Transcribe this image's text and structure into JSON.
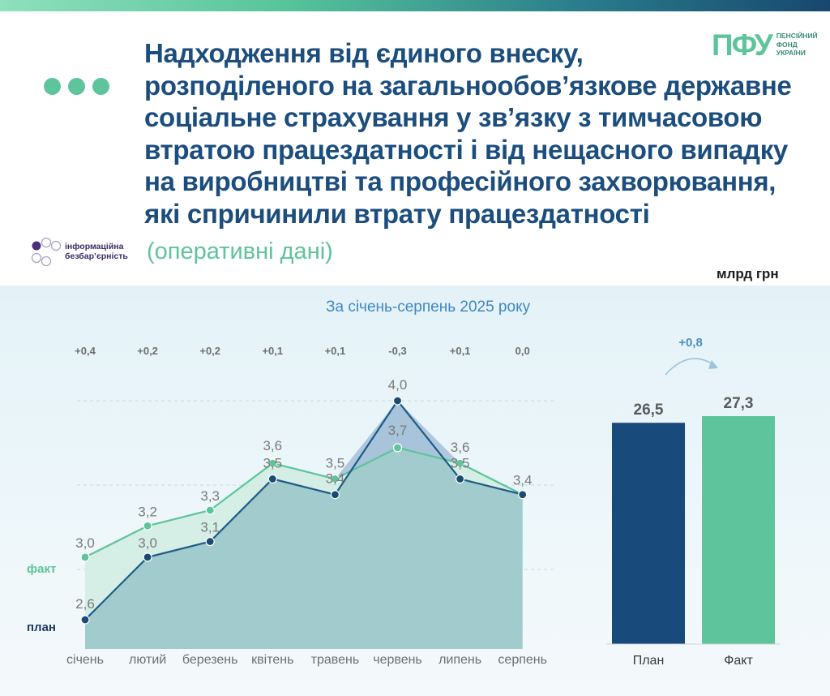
{
  "header": {
    "title_lines": [
      "Надходження від єдиного внеску,",
      "розподіленого на загальнообов’язкове державне",
      "соціальне страхування у зв’язку з тимчасовою",
      "втратою працездатності і від нещасного випадку",
      "на виробництві та професійного захворювання,",
      "які спричинили втрату працездатності"
    ],
    "subtitle": "(оперативні дані)",
    "unit": "млрд грн",
    "logo": {
      "mark": "ПФУ",
      "lines": [
        "ПЕНСІЙНИЙ",
        "ФОНД",
        "УКРАЇНИ"
      ]
    },
    "accessibility_badge": [
      "інформаційна",
      "безбар’єрність"
    ]
  },
  "colors": {
    "accent_green": "#5ec49b",
    "accent_navy": "#1b4d7e",
    "plan_line": "#1f5a85",
    "fact_line": "#5ec49b",
    "plan_bar": "#184b7b",
    "fact_bar": "#5ec49b"
  },
  "chart_data": [
    {
      "type": "line",
      "title": "За січень-серпень 2025 року",
      "categories": [
        "січень",
        "лютий",
        "березень",
        "квітень",
        "травень",
        "червень",
        "липень",
        "серпень"
      ],
      "series": [
        {
          "name": "факт",
          "values": [
            3.0,
            3.2,
            3.3,
            3.6,
            3.5,
            3.7,
            3.6,
            3.4
          ]
        },
        {
          "name": "план",
          "values": [
            2.6,
            3.0,
            3.1,
            3.5,
            3.4,
            4.0,
            3.5,
            3.4
          ]
        }
      ],
      "differences": [
        "+0,4",
        "+0,2",
        "+0,2",
        "+0,1",
        "+0,1",
        "-0,3",
        "+0,1",
        "0,0"
      ],
      "value_labels": {
        "факт": [
          "3,0",
          "3,2",
          "3,3",
          "3,6",
          "3,5",
          "3,7",
          "3,6",
          "3,4"
        ],
        "план": [
          "2,6",
          "3,0",
          "3,1",
          "3,5",
          "3,4",
          "4,0",
          "3,5",
          ""
        ]
      },
      "ylim": [
        2.6,
        4.0
      ],
      "grid": true
    },
    {
      "type": "bar",
      "categories": [
        "План",
        "Факт"
      ],
      "values": [
        26.5,
        27.3
      ],
      "value_labels": [
        "26,5",
        "27,3"
      ],
      "difference": "+0,8",
      "ylim": [
        0,
        27.3
      ]
    }
  ]
}
